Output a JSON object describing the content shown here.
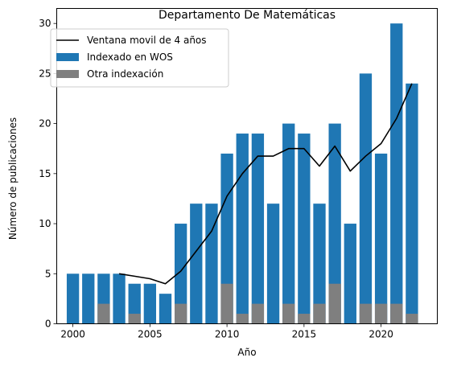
{
  "chart_data": {
    "type": "bar",
    "title": "Departamento De Matemáticas",
    "xlabel": "Año",
    "ylabel": "Número de publicaciones",
    "x": [
      2000,
      2001,
      2002,
      2003,
      2004,
      2005,
      2006,
      2007,
      2008,
      2009,
      2010,
      2011,
      2012,
      2013,
      2014,
      2015,
      2016,
      2017,
      2018,
      2019,
      2020,
      2021,
      2022
    ],
    "xlim": [
      1998.95,
      2023.65
    ],
    "ylim": [
      0,
      31.5
    ],
    "xticks": [
      2000,
      2005,
      2010,
      2015,
      2020
    ],
    "yticks": [
      0,
      5,
      10,
      15,
      20,
      25,
      30
    ],
    "series": [
      {
        "name": "Indexado en WOS",
        "kind": "bar",
        "color": "#1f77b4",
        "values": [
          5,
          5,
          5,
          5,
          4,
          4,
          3,
          10,
          12,
          12,
          17,
          19,
          19,
          12,
          20,
          19,
          12,
          20,
          10,
          25,
          17,
          30,
          24
        ]
      },
      {
        "name": "Otra indexación",
        "kind": "bar",
        "color": "#7f7f7f",
        "values": [
          0,
          0,
          2,
          0,
          1,
          0,
          0,
          2,
          0,
          0,
          4,
          1,
          2,
          0,
          2,
          1,
          2,
          4,
          0,
          2,
          2,
          2,
          1
        ]
      },
      {
        "name": "Ventana movil de 4 años",
        "kind": "line",
        "color": "#000000",
        "x": [
          2003,
          2004,
          2005,
          2006,
          2007,
          2008,
          2009,
          2010,
          2011,
          2012,
          2013,
          2014,
          2015,
          2016,
          2017,
          2018,
          2019,
          2020,
          2021,
          2022
        ],
        "values": [
          5.0,
          4.75,
          4.5,
          4.0,
          5.25,
          7.25,
          9.25,
          12.75,
          15.0,
          16.75,
          16.75,
          17.5,
          17.5,
          15.75,
          17.75,
          15.25,
          16.75,
          18.0,
          20.5,
          24.0
        ]
      }
    ],
    "legend": {
      "location": "upper-left",
      "order": [
        "Ventana movil de 4 años",
        "Indexado en WOS",
        "Otra indexación"
      ]
    },
    "grid": false
  }
}
